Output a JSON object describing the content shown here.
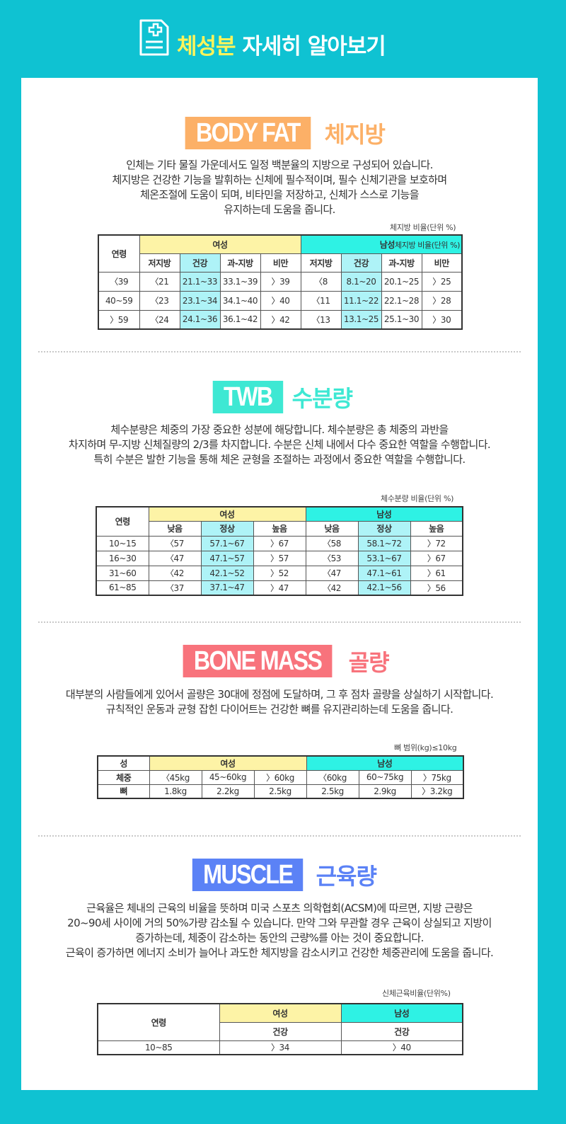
{
  "header": {
    "title_highlight": "체성분",
    "title_rest": " 자세히 알아보기"
  },
  "body_fat": {
    "badge": "BODY FAT",
    "title": "체지방",
    "color": "#fcb067",
    "paragraph": [
      "인체는 기타 물질 가운데서도 일정 백분율의 지방으로 구성되어 있습니다.",
      "체지방은 건강한 기능을 발휘하는 신체에 필수적이며, 필수 신체기관을 보호하며",
      "체온조절에 도움이 되며, 비타민을 저장하고, 신체가 스스로 기능을",
      "유지하는데 도움을 줍니다."
    ],
    "unit": "체지방 비율(단위 %)",
    "unit_overlap": "체지방 비율(단위 %)",
    "head_age": "연령",
    "head_female": "여성",
    "head_male": "남성",
    "cols": [
      "저지방",
      "건강",
      "과-지방",
      "비만",
      "저지방",
      "건강",
      "과-지방",
      "비만"
    ],
    "rows": [
      [
        "〈39",
        "〈21",
        "21.1~33",
        "33.1~39",
        "〉39",
        "〈8",
        "8.1~20",
        "20.1~25",
        "〉25"
      ],
      [
        "40~59",
        "〈23",
        "23.1~34",
        "34.1~40",
        "〉40",
        "〈11",
        "11.1~22",
        "22.1~28",
        "〉28"
      ],
      [
        "〉59",
        "〈24",
        "24.1~36",
        "36.1~42",
        "〉42",
        "〈13",
        "13.1~25",
        "25.1~30",
        "〉30"
      ]
    ]
  },
  "twb": {
    "badge": "TWB",
    "title": "수분량",
    "color": "#3ee8d3",
    "paragraph": [
      "체수분량은 체중의 가장 중요한 성분에 해당합니다. 체수분량은 총 체중의 과반을",
      "차지하며 무-지방 신체질량의 2/3를 차지합니다. 수분은 신체 내에서 다수 중요한 역할을 수행합니다.",
      "특히 수분은 발한 기능을 통해 체온 균형을 조절하는 과정에서 중요한 역할을 수행합니다."
    ],
    "unit": "체수분량 비율(단위 %)",
    "head_age": "연령",
    "head_female": "여성",
    "head_male": "남성",
    "cols": [
      "낮음",
      "정상",
      "높음",
      "낮음",
      "정상",
      "높음"
    ],
    "rows": [
      [
        "10~15",
        "〈57",
        "57.1~67",
        "〉67",
        "〈58",
        "58.1~72",
        "〉72"
      ],
      [
        "16~30",
        "〈47",
        "47.1~57",
        "〉57",
        "〈53",
        "53.1~67",
        "〉67"
      ],
      [
        "31~60",
        "〈42",
        "42.1~52",
        "〉52",
        "〈47",
        "47.1~61",
        "〉61"
      ],
      [
        "61~85",
        "〈37",
        "37.1~47",
        "〉47",
        "〈42",
        "42.1~56",
        "〉56"
      ]
    ]
  },
  "bone": {
    "badge": "BONE MASS",
    "title": "골량",
    "color": "#f8737c",
    "paragraph": [
      "대부분의 사람들에게 있어서 골량은 30대에 정점에 도달하며, 그 후 점차 골량을 상실하기 시작합니다.",
      "규칙적인 운동과 균형 잡힌 다이어트는 건강한 뼈를 유지관리하는데 도움을 줍니다."
    ],
    "unit": "뼈 범위(kg)≤10kg",
    "head_sex": "성",
    "head_female": "여성",
    "head_male": "남성",
    "weight_label": "체중",
    "bone_label": "뼈",
    "weights": [
      "〈45kg",
      "45~60kg",
      "〉60kg",
      "〈60kg",
      "60~75kg",
      "〉75kg"
    ],
    "bones": [
      "1.8kg",
      "2.2kg",
      "2.5kg",
      "2.5kg",
      "2.9kg",
      "〉3.2kg"
    ]
  },
  "muscle": {
    "badge": "MUSCLE",
    "title": "근육량",
    "color": "#5b82f6",
    "paragraph": [
      "근육율은 체내의 근육의 비율을 뜻하며 미국 스포츠 의학협회(ACSM)에 따르면, 지방 근량은",
      "20~90세 사이에 거의 50%가량 감소될 수 있습니다. 만약 그와 무관할 경우 근육이 상실되고 지방이",
      "증가하는데, 체중이 감소하는 동안의 근량%를 아는 것이 중요합니다.",
      "근육이 증가하면 에너지 소비가 늘어나 과도한 체지방을 감소시키고 건강한 체중관리에 도움을 줍니다."
    ],
    "unit": "신체근육비율(단위%)",
    "head_age": "연령",
    "head_female": "여성",
    "head_male": "남성",
    "sub_female": "건강",
    "sub_male": "건강",
    "row_age": "10~85",
    "row_female": "〉34",
    "row_male": "〉40"
  }
}
